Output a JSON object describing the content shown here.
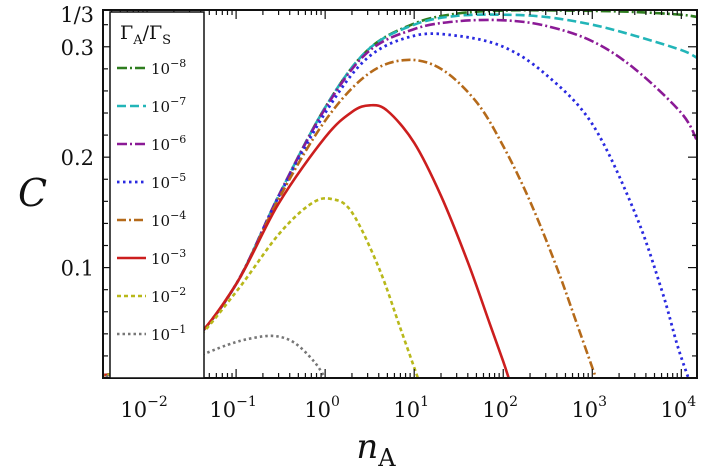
{
  "chart_data": {
    "type": "line",
    "xscale": "log",
    "xlim": [
      0.0032,
      15000
    ],
    "ylim": [
      0,
      0.3333
    ],
    "xlabel": "n",
    "xlabel_sub": "A",
    "ylabel": "C",
    "x_ticks": [
      {
        "value": 0.01,
        "base": "10",
        "exp": "−2"
      },
      {
        "value": 0.1,
        "base": "10",
        "exp": "−1"
      },
      {
        "value": 1,
        "base": "10",
        "exp": "0"
      },
      {
        "value": 10,
        "base": "10",
        "exp": "1"
      },
      {
        "value": 100,
        "base": "10",
        "exp": "2"
      },
      {
        "value": 1000,
        "base": "10",
        "exp": "3"
      },
      {
        "value": 10000,
        "base": "10",
        "exp": "4"
      }
    ],
    "y_ticks": [
      {
        "value": 0.1,
        "label": "0.1"
      },
      {
        "value": 0.2,
        "label": "0.2"
      },
      {
        "value": 0.3,
        "label": "0.3"
      },
      {
        "value": 0.3333,
        "label": "1/3"
      }
    ],
    "legend": {
      "title_main": "Γ",
      "title_sub1": "A",
      "title_sep": "/Γ",
      "title_sub2": "S",
      "placement": "top-left"
    },
    "series": [
      {
        "name": "10^-8",
        "base": "10",
        "exp": "−8",
        "color": "#2e7d1f",
        "dash": "10,3,2,3",
        "width": 2.6,
        "x": [
          0.003,
          0.01,
          0.03,
          0.1,
          0.3,
          1,
          3,
          10,
          30,
          100,
          300,
          1000,
          3000,
          10000,
          15000
        ],
        "y": [
          0.002,
          0.01,
          0.03,
          0.085,
          0.165,
          0.245,
          0.297,
          0.321,
          0.33,
          0.3328,
          0.333,
          0.3325,
          0.3315,
          0.329,
          0.327
        ]
      },
      {
        "name": "10^-7",
        "base": "10",
        "exp": "−7",
        "color": "#22b5b8",
        "dash": "9,4",
        "width": 2.6,
        "x": [
          0.003,
          0.01,
          0.03,
          0.1,
          0.3,
          1,
          3,
          10,
          30,
          100,
          300,
          1000,
          3000,
          10000,
          15000
        ],
        "y": [
          0.002,
          0.01,
          0.03,
          0.085,
          0.165,
          0.245,
          0.297,
          0.32,
          0.328,
          0.329,
          0.327,
          0.32,
          0.31,
          0.297,
          0.29
        ]
      },
      {
        "name": "10^-6",
        "base": "10",
        "exp": "−6",
        "color": "#8b1a96",
        "dash": "10,3,2,3",
        "width": 2.6,
        "x": [
          0.003,
          0.01,
          0.03,
          0.1,
          0.3,
          1,
          3,
          10,
          30,
          100,
          300,
          1000,
          3000,
          10000,
          15000
        ],
        "y": [
          0.002,
          0.01,
          0.03,
          0.085,
          0.165,
          0.244,
          0.295,
          0.316,
          0.323,
          0.324,
          0.319,
          0.305,
          0.28,
          0.24,
          0.215
        ]
      },
      {
        "name": "10^-5",
        "base": "10",
        "exp": "−5",
        "color": "#2a2ae0",
        "dash": "2.5,3.5",
        "width": 2.8,
        "x": [
          0.003,
          0.01,
          0.03,
          0.1,
          0.3,
          1,
          3,
          10,
          30,
          100,
          300,
          1000,
          3000,
          6000,
          9000,
          12000
        ],
        "y": [
          0.002,
          0.01,
          0.03,
          0.085,
          0.164,
          0.24,
          0.29,
          0.31,
          0.31,
          0.3,
          0.275,
          0.23,
          0.15,
          0.08,
          0.03,
          0
        ]
      },
      {
        "name": "10^-4",
        "base": "10",
        "exp": "−4",
        "color": "#b56a1a",
        "dash": "9,3,2,3",
        "width": 2.6,
        "x": [
          0.003,
          0.01,
          0.03,
          0.1,
          0.3,
          1,
          3,
          8,
          20,
          50,
          100,
          200,
          400,
          700,
          1100
        ],
        "y": [
          0.002,
          0.01,
          0.03,
          0.085,
          0.162,
          0.233,
          0.275,
          0.288,
          0.28,
          0.25,
          0.21,
          0.16,
          0.1,
          0.045,
          0
        ]
      },
      {
        "name": "10^-3",
        "base": "10",
        "exp": "−3",
        "color": "#cc1e1e",
        "dash": "",
        "width": 2.6,
        "x": [
          0.003,
          0.01,
          0.03,
          0.1,
          0.3,
          1,
          2,
          3.2,
          5,
          10,
          20,
          40,
          70,
          100,
          115
        ],
        "y": [
          0.002,
          0.01,
          0.03,
          0.085,
          0.158,
          0.218,
          0.241,
          0.247,
          0.242,
          0.213,
          0.165,
          0.105,
          0.05,
          0.015,
          0
        ]
      },
      {
        "name": "10^-2",
        "base": "10",
        "exp": "−2",
        "color": "#b8b81a",
        "dash": "4,3",
        "width": 2.6,
        "x": [
          0.003,
          0.01,
          0.03,
          0.1,
          0.3,
          0.7,
          1.2,
          2,
          4,
          7,
          11
        ],
        "y": [
          0.002,
          0.01,
          0.029,
          0.078,
          0.13,
          0.158,
          0.162,
          0.15,
          0.1,
          0.045,
          0
        ]
      },
      {
        "name": "10^-1",
        "base": "10",
        "exp": "−1",
        "color": "#777777",
        "dash": "2.5,3",
        "width": 2.6,
        "x": [
          0.003,
          0.01,
          0.03,
          0.08,
          0.15,
          0.27,
          0.45,
          0.75,
          1.0
        ],
        "y": [
          0.001,
          0.006,
          0.017,
          0.03,
          0.036,
          0.038,
          0.032,
          0.015,
          0
        ]
      }
    ]
  }
}
